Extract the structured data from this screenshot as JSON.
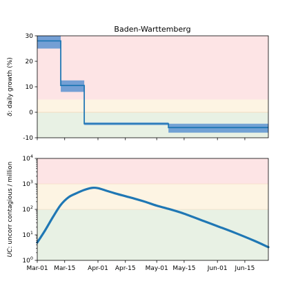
{
  "chart_data": [
    {
      "type": "line",
      "title": "Baden-Warttemberg",
      "ylabel_symbol": "δ",
      "ylabel_rest": ": daily growth (%)",
      "ylim": [
        -10,
        30
      ],
      "yticks": [
        -10,
        0,
        10,
        20,
        30
      ],
      "xlim": [
        "2020-03-01",
        "2020-06-27"
      ],
      "zones": [
        {
          "y0": -10,
          "y1": 0,
          "color": "#e8f1e4"
        },
        {
          "y0": 0,
          "y1": 5,
          "color": "#fdf4e3"
        },
        {
          "y0": 5,
          "y1": 30,
          "color": "#fde4e5"
        }
      ],
      "series": [
        {
          "line_color": "#1f77b4",
          "band_color": "#5c93d1",
          "segments": [
            {
              "x0": "2020-03-01",
              "x1": "2020-03-13",
              "value": 28,
              "low": 25,
              "high": 30
            },
            {
              "x0": "2020-03-13",
              "x1": "2020-03-25",
              "value": 10.5,
              "low": 8,
              "high": 12.5
            },
            {
              "x0": "2020-03-25",
              "x1": "2020-05-07",
              "value": -4.5,
              "low": -5,
              "high": -4
            },
            {
              "x0": "2020-05-07",
              "x1": "2020-06-27",
              "value": -6,
              "low": -8,
              "high": -4.5
            }
          ]
        }
      ]
    },
    {
      "type": "line",
      "ylabel_symbol": "UC",
      "ylabel_rest": ": uncorr contagious / million",
      "yscale": "log",
      "ylim": [
        1,
        10000
      ],
      "yticks": [
        {
          "value": 1,
          "base": "10",
          "exp": "0"
        },
        {
          "value": 10,
          "base": "10",
          "exp": "1"
        },
        {
          "value": 100,
          "base": "10",
          "exp": "2"
        },
        {
          "value": 1000,
          "base": "10",
          "exp": "3"
        },
        {
          "value": 10000,
          "base": "10",
          "exp": "4"
        }
      ],
      "xlim": [
        "2020-03-01",
        "2020-06-27"
      ],
      "xticks": [
        {
          "date": "2020-03-01",
          "label": "Mar-01"
        },
        {
          "date": "2020-03-15",
          "label": "Mar-15"
        },
        {
          "date": "2020-04-01",
          "label": "Apr-01"
        },
        {
          "date": "2020-04-15",
          "label": "Apr-15"
        },
        {
          "date": "2020-05-01",
          "label": "May-01"
        },
        {
          "date": "2020-05-15",
          "label": "May-15"
        },
        {
          "date": "2020-06-01",
          "label": "Jun-01"
        },
        {
          "date": "2020-06-15",
          "label": "Jun-15"
        }
      ],
      "zones": [
        {
          "y0": 1,
          "y1": 100,
          "color": "#e8f1e4"
        },
        {
          "y0": 100,
          "y1": 1000,
          "color": "#fdf4e3"
        },
        {
          "y0": 1000,
          "y1": 10000,
          "color": "#fde4e5"
        }
      ],
      "series": [
        {
          "color": "#1f77b4",
          "x": [
            "2020-03-01",
            "2020-03-05",
            "2020-03-09",
            "2020-03-13",
            "2020-03-17",
            "2020-03-21",
            "2020-03-25",
            "2020-03-29",
            "2020-04-01",
            "2020-04-05",
            "2020-04-10",
            "2020-04-15",
            "2020-04-20",
            "2020-04-25",
            "2020-05-01",
            "2020-05-07",
            "2020-05-15",
            "2020-05-25",
            "2020-06-01",
            "2020-06-10",
            "2020-06-20",
            "2020-06-27"
          ],
          "y": [
            5,
            15,
            50,
            150,
            300,
            430,
            580,
            700,
            680,
            550,
            420,
            330,
            260,
            200,
            140,
            105,
            68,
            35,
            22,
            12,
            5.8,
            3.3
          ]
        }
      ]
    }
  ]
}
